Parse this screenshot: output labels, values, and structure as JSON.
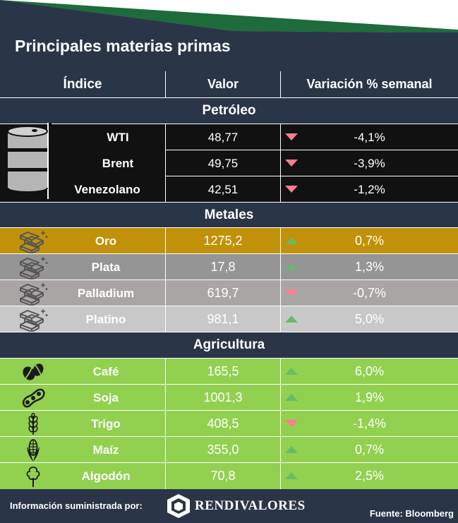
{
  "title": "Principales materias primas",
  "columns": {
    "index": "Índice",
    "value": "Valor",
    "change": "Variación % semanal"
  },
  "sections": [
    {
      "name": "Petróleo",
      "icon": "oil-barrel-icon",
      "rows": [
        {
          "name": "WTI",
          "value": "48,77",
          "change": "-4,1%",
          "direction": "down"
        },
        {
          "name": "Brent",
          "value": "49,75",
          "change": "-3,9%",
          "direction": "down"
        },
        {
          "name": "Venezolano",
          "value": "42,51",
          "change": "-1,2%",
          "direction": "down"
        }
      ]
    },
    {
      "name": "Metales",
      "icon": "metal-bars-icon",
      "rows": [
        {
          "name": "Oro",
          "value": "1275,2",
          "change": "0,7%",
          "direction": "up",
          "color": "#c09109"
        },
        {
          "name": "Plata",
          "value": "17,8",
          "change": "1,3%",
          "direction": "up",
          "color": "#959595"
        },
        {
          "name": "Palladium",
          "value": "619,7",
          "change": "-0,7%",
          "direction": "down",
          "color": "#a9a5a5"
        },
        {
          "name": "Platino",
          "value": "981,1",
          "change": "5,0%",
          "direction": "up",
          "color": "#c8c8c8"
        }
      ]
    },
    {
      "name": "Agricultura",
      "rows": [
        {
          "name": "Café",
          "value": "165,5",
          "change": "6,0%",
          "direction": "up",
          "icon": "coffee-beans-icon"
        },
        {
          "name": "Soja",
          "value": "1001,3",
          "change": "1,9%",
          "direction": "up",
          "icon": "soybean-icon"
        },
        {
          "name": "Trigo",
          "value": "408,5",
          "change": "-1,4%",
          "direction": "down",
          "icon": "wheat-icon"
        },
        {
          "name": "Maíz",
          "value": "355,0",
          "change": "0,7%",
          "direction": "up",
          "icon": "corn-icon"
        },
        {
          "name": "Algodón",
          "value": "70,8",
          "change": "2,5%",
          "direction": "up",
          "icon": "cotton-icon"
        }
      ]
    }
  ],
  "footer": {
    "info_label": "Información suministrada por:",
    "brand": "RENDIVALORES",
    "source": "Fuente: Bloomberg"
  },
  "colors": {
    "background": "#2b3548",
    "oil_rows": "#111111",
    "agriculture_rows": "#92d050",
    "header_accent": "#1e6b3c",
    "down_arrow": "#ff7b8f",
    "up_arrow": "#66bb6a"
  }
}
